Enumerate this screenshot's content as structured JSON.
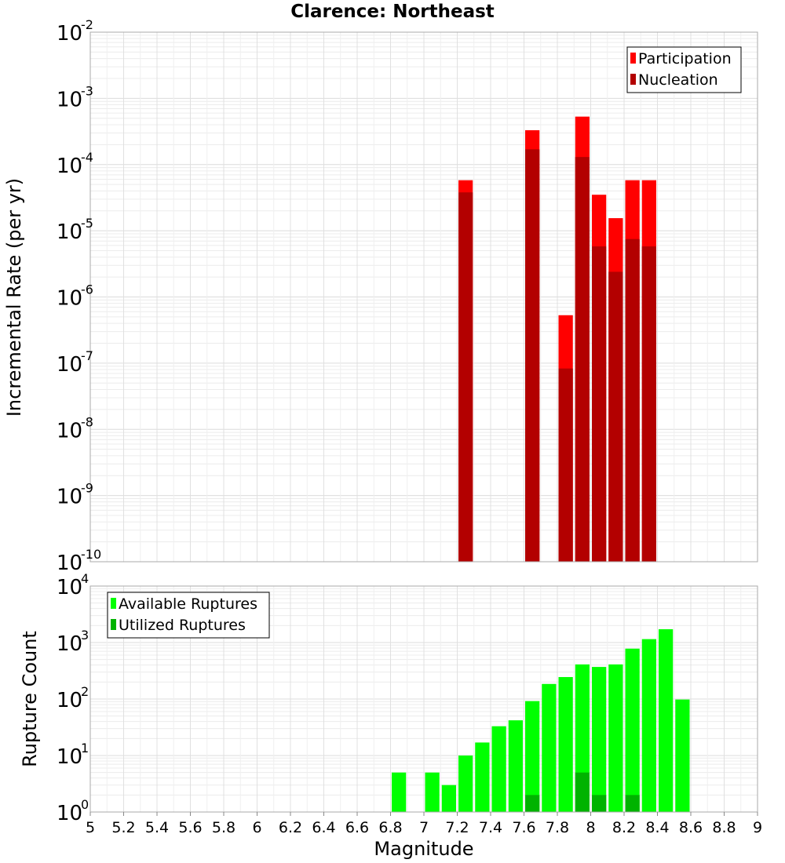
{
  "chart_data": [
    {
      "type": "bar",
      "panel": "top",
      "title": "Clarence: Northeast",
      "xlabel": "",
      "ylabel": "Incremental Rate (per yr)",
      "yscale": "log",
      "ylim_exponents": [
        -10,
        -2
      ],
      "xlim": [
        5,
        9
      ],
      "legend_position": "top-right",
      "series": [
        {
          "name": "Participation",
          "color": "#ff0000",
          "x": [
            7.25,
            7.65,
            7.85,
            7.95,
            8.05,
            8.15,
            8.25,
            8.35
          ],
          "values": [
            5.8e-05,
            0.00033,
            5.3e-07,
            0.00053,
            3.5e-05,
            1.55e-05,
            5.8e-05,
            5.8e-05
          ]
        },
        {
          "name": "Nucleation",
          "color": "#b30000",
          "x": [
            7.25,
            7.65,
            7.85,
            7.95,
            8.05,
            8.15,
            8.25,
            8.35
          ],
          "values": [
            3.8e-05,
            0.00017,
            8.3e-08,
            0.00013,
            5.8e-06,
            2.4e-06,
            7.5e-06,
            5.8e-06
          ]
        }
      ]
    },
    {
      "type": "bar",
      "panel": "bottom",
      "title": "",
      "xlabel": "Magnitude",
      "ylabel": "Rupture Count",
      "yscale": "log",
      "ylim_exponents": [
        0,
        4
      ],
      "xlim": [
        5,
        9
      ],
      "x_ticks": [
        "5",
        "5.2",
        "5.4",
        "5.6",
        "5.8",
        "6",
        "6.2",
        "6.4",
        "6.6",
        "6.8",
        "7",
        "7.2",
        "7.4",
        "7.6",
        "7.8",
        "8",
        "8.2",
        "8.4",
        "8.6",
        "8.8",
        "9"
      ],
      "legend_position": "top-left",
      "series": [
        {
          "name": "Available Ruptures",
          "color": "#00ff00",
          "x": [
            6.85,
            7.05,
            7.15,
            7.25,
            7.35,
            7.45,
            7.55,
            7.65,
            7.75,
            7.85,
            7.95,
            8.05,
            8.15,
            8.25,
            8.35,
            8.45,
            8.55
          ],
          "values": [
            5,
            5,
            3,
            10,
            17,
            33,
            42,
            92,
            185,
            245,
            410,
            370,
            410,
            780,
            1150,
            1720,
            98
          ]
        },
        {
          "name": "Utilized Ruptures",
          "color": "#00b300",
          "x": [
            7.25,
            7.65,
            7.85,
            7.95,
            8.05,
            8.15,
            8.25,
            8.35
          ],
          "values": [
            1,
            2,
            1,
            5,
            2,
            1,
            2,
            1
          ]
        }
      ]
    }
  ]
}
